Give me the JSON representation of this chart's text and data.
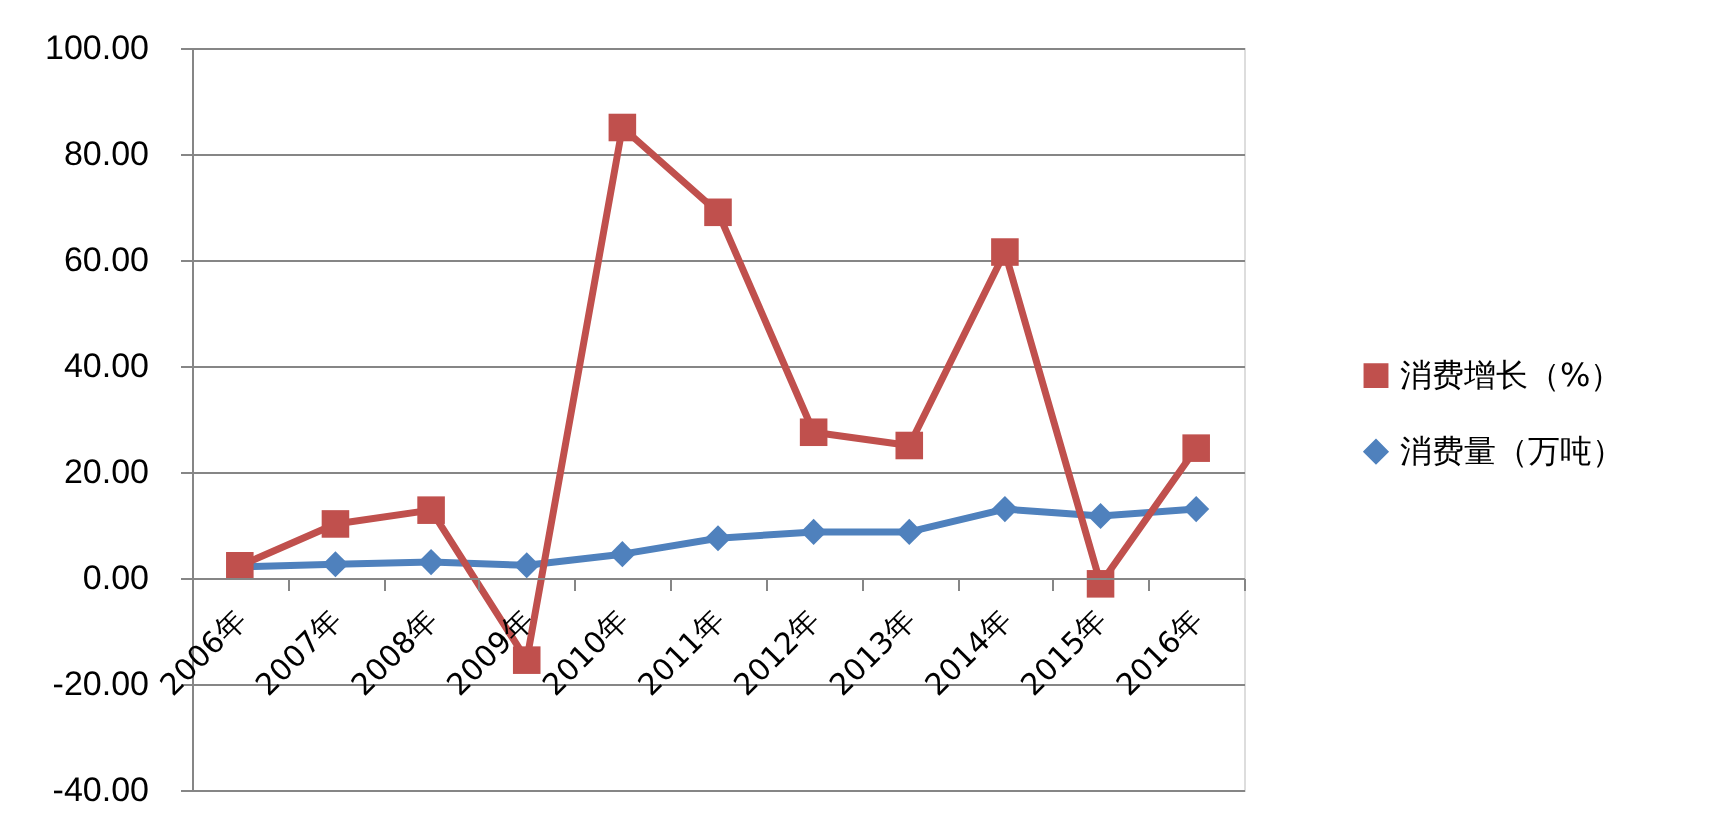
{
  "chart_data": {
    "type": "line",
    "categories": [
      "2006年",
      "2007年",
      "2008年",
      "2009年",
      "2010年",
      "2011年",
      "2012年",
      "2013年",
      "2014年",
      "2015年",
      "2016年"
    ],
    "series": [
      {
        "name": "消费增长（%）",
        "color": "#c0504d",
        "marker": "square",
        "line_style": "solid",
        "values": [
          2.3,
          10.2,
          12.8,
          -15.5,
          85,
          69,
          27.5,
          25,
          61.5,
          -1.1,
          24.5
        ]
      },
      {
        "name": "消费量（万吨）",
        "color": "#4f81bd",
        "marker": "diamond",
        "line_style": "solid",
        "values": [
          2.1,
          2.6,
          3,
          2.4,
          4.5,
          7.5,
          8.7,
          8.7,
          13,
          11.7,
          13
        ]
      }
    ],
    "ylim": [
      -40,
      100
    ],
    "yticks": [
      {
        "value": -40,
        "label": "-40.00"
      },
      {
        "value": -20,
        "label": "-20.00"
      },
      {
        "value": 0,
        "label": "0.00"
      },
      {
        "value": 20,
        "label": "20.00"
      },
      {
        "value": 40,
        "label": "40.00"
      },
      {
        "value": 60,
        "label": "60.00"
      },
      {
        "value": 80,
        "label": "80.00"
      },
      {
        "value": 100,
        "label": "100.00"
      }
    ],
    "grid": "y",
    "legend": "right"
  }
}
